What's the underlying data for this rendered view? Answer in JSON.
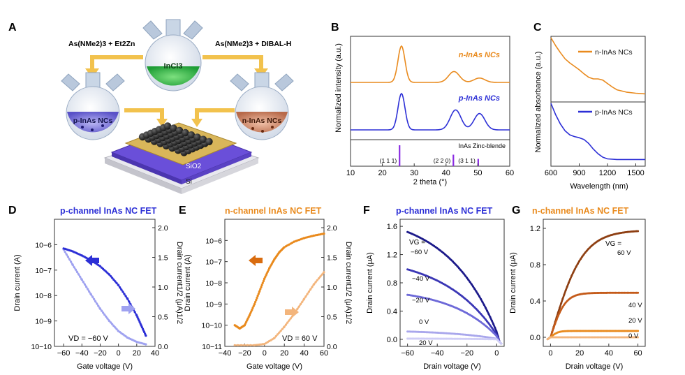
{
  "panels": {
    "A": {
      "letter": "A",
      "label_left": "As(NMe2)3 + Et2Zn",
      "label_right": "As(NMe2)3 + DIBAL-H",
      "flask_center_label": "InCl3",
      "flask_left_label": "p-InAs NCs",
      "flask_right_label": "n-InAs NCs",
      "substrate_labels": [
        "SiO2",
        "Si"
      ],
      "colors": {
        "center": "#3fbf4a",
        "left": "#7e78d8",
        "right": "#cf8e72",
        "arrow": "#f2c24d"
      }
    },
    "B": {
      "letter": "B"
    },
    "C": {
      "letter": "C"
    },
    "D": {
      "letter": "D",
      "title": "p-channel InAs NC FET",
      "annotation": "VD = −60 V"
    },
    "E": {
      "letter": "E",
      "title": "n-channel InAs NC FET",
      "annotation": "VD = 60 V"
    },
    "F": {
      "letter": "F",
      "title": "p-channel InAs NC FET",
      "vg_header": "VG =",
      "curve_labels": [
        "−60 V",
        "−40 V",
        "−20 V",
        "0 V",
        "20 V"
      ]
    },
    "G": {
      "letter": "G",
      "title": "n-channel InAs NC FET",
      "vg_header": "VG =",
      "curve_labels": [
        "60 V",
        "40 V",
        "20 V",
        "0 V"
      ]
    }
  },
  "colors": {
    "blue": "#2c2fd6",
    "blue_light": "#9fa2f0",
    "orange": "#e98a1d",
    "orange_dark": "#c95f16",
    "orange_light": "#f3b57c",
    "purple": "#8a2be2"
  },
  "chart_data": [
    {
      "id": "B",
      "type": "line",
      "xlabel": "2 theta (°)",
      "ylabel": "Normalized intensity (a.u.)",
      "xlim": [
        10,
        60
      ],
      "xticks": [
        10,
        20,
        30,
        40,
        50,
        60
      ],
      "series": [
        {
          "name": "n-InAs NCs",
          "color": "#e98a1d",
          "peaks": [
            [
              26,
              1.0
            ],
            [
              42.5,
              0.3
            ],
            [
              50.5,
              0.12
            ]
          ]
        },
        {
          "name": "p-InAs NCs",
          "color": "#2c2fd6",
          "peaks": [
            [
              26,
              1.0
            ],
            [
              43,
              0.55
            ],
            [
              50.5,
              0.45
            ]
          ]
        }
      ],
      "reference": {
        "name": "InAs Zinc-blende",
        "lines": [
          {
            "x": 25.4,
            "label": "(1 1 1)",
            "h": 1.0
          },
          {
            "x": 42.3,
            "label": "(2 2 0)",
            "h": 0.55
          },
          {
            "x": 50.1,
            "label": "(3 1 1)",
            "h": 0.35
          }
        ]
      }
    },
    {
      "id": "C",
      "type": "line",
      "xlabel": "Wavelength (nm)",
      "ylabel": "Normalized absorbance (a.u.)",
      "xlim": [
        600,
        1600
      ],
      "xticks": [
        600,
        900,
        1200,
        1500
      ],
      "series": [
        {
          "name": "n-InAs NCs",
          "color": "#e98a1d",
          "x": [
            600,
            650,
            700,
            750,
            800,
            850,
            900,
            950,
            1000,
            1050,
            1100,
            1150,
            1200,
            1250,
            1300,
            1400,
            1500,
            1600
          ],
          "y": [
            1.0,
            0.86,
            0.74,
            0.63,
            0.56,
            0.5,
            0.44,
            0.37,
            0.31,
            0.28,
            0.28,
            0.26,
            0.2,
            0.14,
            0.09,
            0.05,
            0.03,
            0.02
          ]
        },
        {
          "name": "p-InAs NCs",
          "color": "#2c2fd6",
          "x": [
            600,
            650,
            700,
            750,
            800,
            850,
            900,
            950,
            1000,
            1050,
            1100,
            1150,
            1200,
            1300,
            1400,
            1500,
            1600
          ],
          "y": [
            1.0,
            0.8,
            0.64,
            0.52,
            0.45,
            0.42,
            0.4,
            0.37,
            0.3,
            0.2,
            0.12,
            0.06,
            0.03,
            0.02,
            0.02,
            0.02,
            0.02
          ]
        }
      ]
    },
    {
      "id": "D",
      "type": "line",
      "xlabel": "Gate voltage (V)",
      "ylabel": "Drain current (A)",
      "y2label": "Drain current1/2 (μA)1/2",
      "xlim": [
        -70,
        40
      ],
      "xticks": [
        -60,
        -40,
        -20,
        0,
        20,
        40
      ],
      "xticklabels": [
        "−60",
        "−40",
        "−20",
        "0",
        "20",
        "40"
      ],
      "yscale": "log",
      "ylim": [
        1e-10,
        1e-05
      ],
      "yticklabels": [
        "10−10",
        "10−9",
        "10−8",
        "10−7",
        "10−6"
      ],
      "y2lim": [
        0,
        2.0
      ],
      "y2ticks": [
        0,
        0.5,
        1.0,
        1.5,
        2.0
      ],
      "series": [
        {
          "name": "Drain current",
          "axis": "left",
          "color": "#9fa2f0",
          "x": [
            -60,
            -50,
            -40,
            -30,
            -20,
            -10,
            0,
            10,
            20,
            30
          ],
          "y": [
            6.5e-07,
            1.6e-07,
            4.2e-08,
            1.1e-08,
            3e-09,
            1e-09,
            4e-10,
            2.2e-10,
            1.5e-10,
            1.2e-10
          ]
        },
        {
          "name": "Drain current 1/2",
          "axis": "right",
          "color": "#2c2fd6",
          "x": [
            -60,
            -50,
            -40,
            -30,
            -20,
            -10,
            0,
            10,
            20,
            25,
            30
          ],
          "y": [
            1.65,
            1.6,
            1.53,
            1.45,
            1.35,
            1.21,
            1.03,
            0.8,
            0.52,
            0.35,
            0.18
          ]
        }
      ]
    },
    {
      "id": "E",
      "type": "line",
      "xlabel": "Gate voltage (V)",
      "ylabel": "Drain current (A)",
      "y2label": "Drain current1/2 (μA)1/2",
      "xlim": [
        -40,
        60
      ],
      "xticks": [
        -40,
        -20,
        0,
        20,
        40,
        60
      ],
      "xticklabels": [
        "−40",
        "−20",
        "0",
        "20",
        "40",
        "60"
      ],
      "yscale": "log",
      "ylim": [
        1e-11,
        1e-05
      ],
      "yticklabels": [
        "10−11",
        "10−10",
        "10−9",
        "10−8",
        "10−7",
        "10−6"
      ],
      "y2lim": [
        0,
        2.0
      ],
      "y2ticks": [
        0,
        0.5,
        1.0,
        1.5,
        2.0
      ],
      "series": [
        {
          "name": "Drain current",
          "axis": "left",
          "color": "#e98a1d",
          "x": [
            -30,
            -25,
            -20,
            -15,
            -10,
            -5,
            0,
            5,
            10,
            15,
            20,
            30,
            40,
            50,
            60
          ],
          "y": [
            1e-10,
            7e-11,
            1e-10,
            3e-10,
            1e-09,
            4e-09,
            1.6e-08,
            5e-08,
            1.3e-07,
            2.8e-07,
            4.8e-07,
            8.8e-07,
            1.3e-06,
            1.7e-06,
            2.1e-06
          ]
        },
        {
          "name": "Drain current 1/2",
          "axis": "right",
          "color": "#f3b57c",
          "x": [
            -30,
            -10,
            0,
            10,
            20,
            30,
            40,
            50,
            60
          ],
          "y": [
            0.02,
            0.02,
            0.04,
            0.14,
            0.33,
            0.55,
            0.8,
            1.05,
            1.25
          ]
        }
      ]
    },
    {
      "id": "F",
      "type": "line",
      "xlabel": "Drain voltage (V)",
      "ylabel": "Drain current (μA)",
      "xlim": [
        -65,
        5
      ],
      "xticks": [
        -60,
        -40,
        -20,
        0
      ],
      "xticklabels": [
        "−60",
        "−40",
        "−20",
        "0"
      ],
      "ylim": [
        -0.1,
        1.7
      ],
      "yticks": [
        0,
        0.4,
        0.8,
        1.2,
        1.6
      ],
      "yticklabels": [
        "0.0",
        "0.4",
        "0.8",
        "1.2",
        "1.6"
      ],
      "series": [
        {
          "name": "−60 V",
          "color": "#1c1a8a",
          "isat": 1.52,
          "k": 0.03
        },
        {
          "name": "−40 V",
          "color": "#3a36b5",
          "isat": 0.99,
          "k": 0.028
        },
        {
          "name": "−20 V",
          "color": "#6d69d8",
          "isat": 0.63,
          "k": 0.032
        },
        {
          "name": "0 V",
          "color": "#a9a7ec",
          "isat": 0.11,
          "k": 0.03
        },
        {
          "name": "20 V",
          "color": "#cfcdf6",
          "isat": 0.01,
          "k": 0.03
        }
      ]
    },
    {
      "id": "G",
      "type": "line",
      "xlabel": "Drain voltage (V)",
      "ylabel": "Drain current (μA)",
      "xlim": [
        -5,
        65
      ],
      "xticks": [
        0,
        20,
        40,
        60
      ],
      "ylim": [
        -0.1,
        1.3
      ],
      "yticks": [
        0,
        0.4,
        0.8,
        1.2
      ],
      "yticklabels": [
        "0.0",
        "0.4",
        "0.8",
        "1.2"
      ],
      "series": [
        {
          "name": "60 V",
          "color": "#8e3f12",
          "isat": 1.18,
          "k": 0.045
        },
        {
          "name": "40 V",
          "color": "#c45b1a",
          "isat": 0.49,
          "k": 0.1
        },
        {
          "name": "20 V",
          "color": "#e98a1d",
          "isat": 0.07,
          "k": 0.2
        },
        {
          "name": "0 V",
          "color": "#f3b57c",
          "isat": 0.0,
          "k": 0.2
        }
      ]
    }
  ]
}
